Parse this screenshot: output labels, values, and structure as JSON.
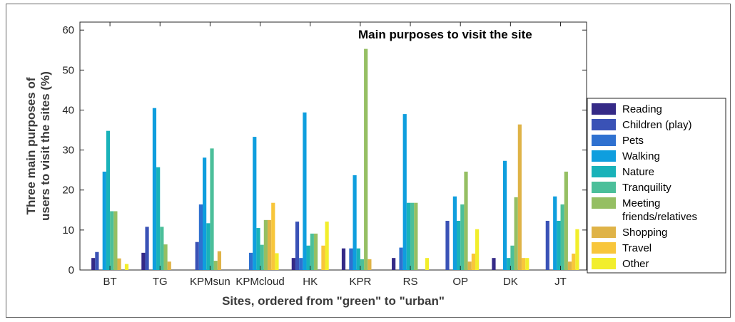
{
  "chart_data": {
    "type": "bar",
    "title": "Main purposes to visit the site",
    "xlabel": "Sites, ordered from \"green\" to \"urban\"",
    "ylabel_lines": [
      "Three main purposes of",
      "users to visit the sites (%)"
    ],
    "ylim": [
      0,
      62
    ],
    "yticks": [
      "0",
      "10",
      "20",
      "30",
      "40",
      "50",
      "60"
    ],
    "legend_position": "outside-right",
    "categories": [
      "BT",
      "TG",
      "KPMsun",
      "KPMcloud",
      "HK",
      "KPR",
      "RS",
      "OP",
      "DK",
      "JT"
    ],
    "series": [
      {
        "name": "Reading",
        "color": "#352a87",
        "values": [
          3,
          4.3,
          0,
          0,
          3,
          5.4,
          3,
          0,
          3,
          0
        ]
      },
      {
        "name": "Children (play)",
        "color": "#3a52b6",
        "values": [
          4.5,
          10.8,
          7,
          0,
          12.1,
          0,
          0,
          12.3,
          0,
          12.3
        ]
      },
      {
        "name": "Pets",
        "color": "#2f71d0",
        "values": [
          0,
          0,
          16.4,
          4.3,
          3,
          5.4,
          5.6,
          0,
          0,
          0
        ]
      },
      {
        "name": "Walking",
        "color": "#0f9ede",
        "values": [
          24.6,
          40.5,
          28.1,
          33.3,
          39.4,
          23.7,
          39,
          18.4,
          27.3,
          18.4
        ]
      },
      {
        "name": "Nature",
        "color": "#19b2b9",
        "values": [
          34.8,
          25.7,
          11.7,
          10.5,
          6.1,
          5.4,
          16.8,
          12.3,
          3,
          12.3
        ]
      },
      {
        "name": "Tranquility",
        "color": "#4bbf9a",
        "values": [
          14.7,
          10.8,
          30.4,
          6.3,
          9.1,
          2.7,
          16.8,
          16.4,
          6.1,
          16.4
        ]
      },
      {
        "name": "Meeting\nfriends/relatives",
        "color": "#95bf63",
        "values": [
          14.7,
          6.4,
          2.3,
          12.5,
          9.1,
          55.3,
          16.8,
          24.6,
          18.2,
          24.6
        ]
      },
      {
        "name": "Shopping",
        "color": "#dfb347",
        "values": [
          2.9,
          2.1,
          4.7,
          12.5,
          0,
          2.7,
          0,
          2.1,
          36.4,
          2.1
        ]
      },
      {
        "name": "Travel",
        "color": "#f8c63b",
        "values": [
          0,
          0,
          0,
          16.8,
          6.1,
          0,
          0,
          4.1,
          3,
          4.1
        ]
      },
      {
        "name": "Other",
        "color": "#f2ee2c",
        "values": [
          1.5,
          0,
          0,
          4.2,
          12.1,
          0,
          3,
          10.2,
          3,
          10.2
        ]
      }
    ]
  }
}
